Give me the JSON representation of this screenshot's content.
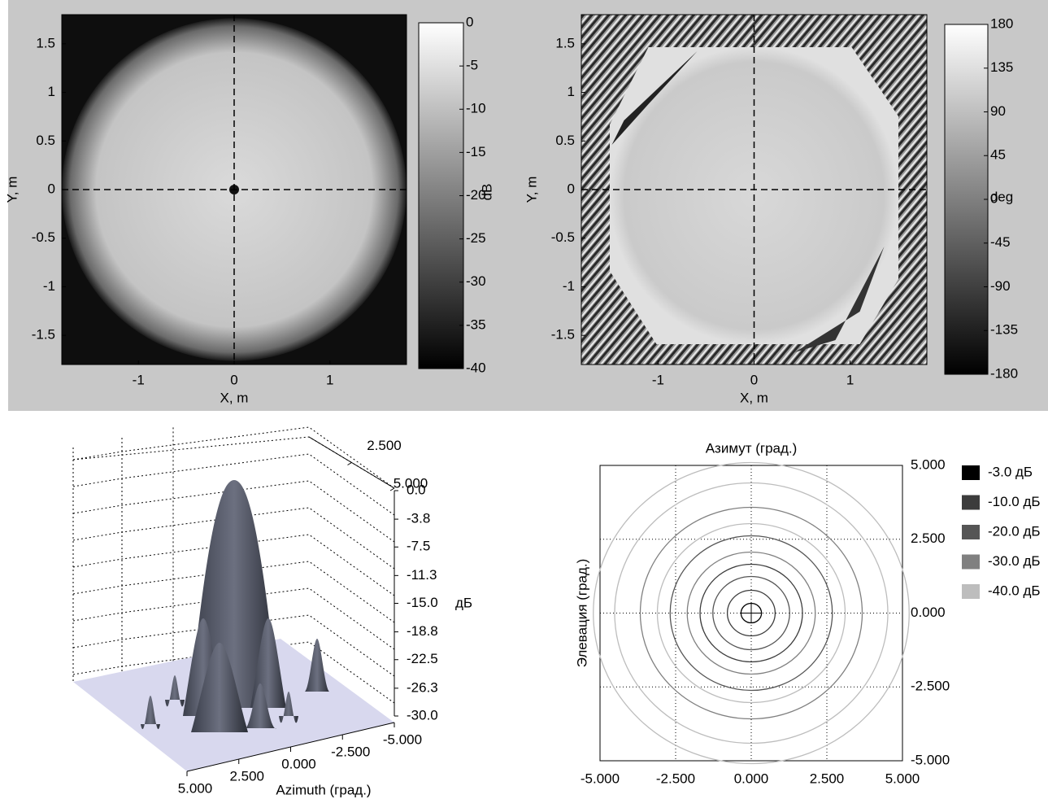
{
  "chart_data": [
    {
      "type": "heatmap",
      "variant": "amplitude",
      "xlabel": "X, m",
      "ylabel": "Y, m",
      "xlim": [
        -1.8,
        1.8
      ],
      "ylim": [
        -1.8,
        1.8
      ],
      "xticks": [
        -1,
        0,
        1
      ],
      "yticks": [
        -1.5,
        -1,
        -0.5,
        0,
        0.5,
        1,
        1.5
      ],
      "colorbar": {
        "lim": [
          -40,
          0
        ],
        "ticks": [
          0,
          -5,
          -10,
          -15,
          -20,
          -25,
          -30,
          -35,
          -40
        ],
        "unit": "dB"
      }
    },
    {
      "type": "heatmap",
      "variant": "phase",
      "xlabel": "X, m",
      "ylabel": "Y, m",
      "xlim": [
        -1.8,
        1.8
      ],
      "ylim": [
        -1.8,
        1.8
      ],
      "xticks": [
        -1,
        0,
        1
      ],
      "yticks": [
        -1.5,
        -1,
        -0.5,
        0,
        0.5,
        1,
        1.5
      ],
      "colorbar": {
        "lim": [
          -180,
          180
        ],
        "ticks": [
          180,
          135,
          90,
          45,
          0,
          -45,
          -90,
          -135,
          -180
        ],
        "unit": "deg"
      }
    },
    {
      "type": "surface3d",
      "xlabel": "Azimuth (град.)",
      "zunit": "дБ",
      "xlim": [
        -5,
        5
      ],
      "ylim": [
        0,
        5
      ],
      "zlim": [
        -30,
        0
      ],
      "xticks": [
        {
          "value": 5,
          "label": "5.000"
        },
        {
          "value": 2.5,
          "label": "2.500"
        },
        {
          "value": 0,
          "label": "0.000"
        },
        {
          "value": -2.5,
          "label": "-2.500"
        },
        {
          "value": -5,
          "label": "-5.000"
        }
      ],
      "yticks": [
        {
          "value": 2.5,
          "label": "2.500"
        },
        {
          "value": 5,
          "label": "5.000"
        }
      ],
      "zticks": [
        {
          "value": 0,
          "label": "0.0"
        },
        -3.8,
        -7.5,
        -11.3,
        {
          "value": -15,
          "label": "-15.0"
        },
        -18.8,
        -22.5,
        -26.3,
        {
          "value": -30,
          "label": "-30.0"
        }
      ]
    },
    {
      "type": "contour",
      "title": "Азимут (град.)",
      "ylabel": "Элевация (град.)",
      "xlim": [
        -5,
        5
      ],
      "ylim": [
        -5,
        5
      ],
      "xticks": [
        {
          "value": -5,
          "label": "-5.000"
        },
        {
          "value": -2.5,
          "label": "-2.500"
        },
        {
          "value": 0,
          "label": "0.000"
        },
        {
          "value": 2.5,
          "label": "2.500"
        },
        {
          "value": 5,
          "label": "5.000"
        }
      ],
      "yticks": [
        {
          "value": 5,
          "label": "5.000"
        },
        {
          "value": 2.5,
          "label": "2.500"
        },
        {
          "value": 0,
          "label": "0.000"
        },
        {
          "value": -2.5,
          "label": "-2.500"
        },
        {
          "value": -5,
          "label": "-5.000"
        }
      ],
      "levels": [
        {
          "value": -3,
          "label": "-3.0 дБ",
          "color": "#000000"
        },
        {
          "value": -10,
          "label": "-10.0 дБ",
          "color": "#3c3c3c"
        },
        {
          "value": -20,
          "label": "-20.0 дБ",
          "color": "#555555"
        },
        {
          "value": -30,
          "label": "-30.0 дБ",
          "color": "#808080"
        },
        {
          "value": -40,
          "label": "-40.0 дБ",
          "color": "#bdbdbd"
        }
      ]
    }
  ]
}
